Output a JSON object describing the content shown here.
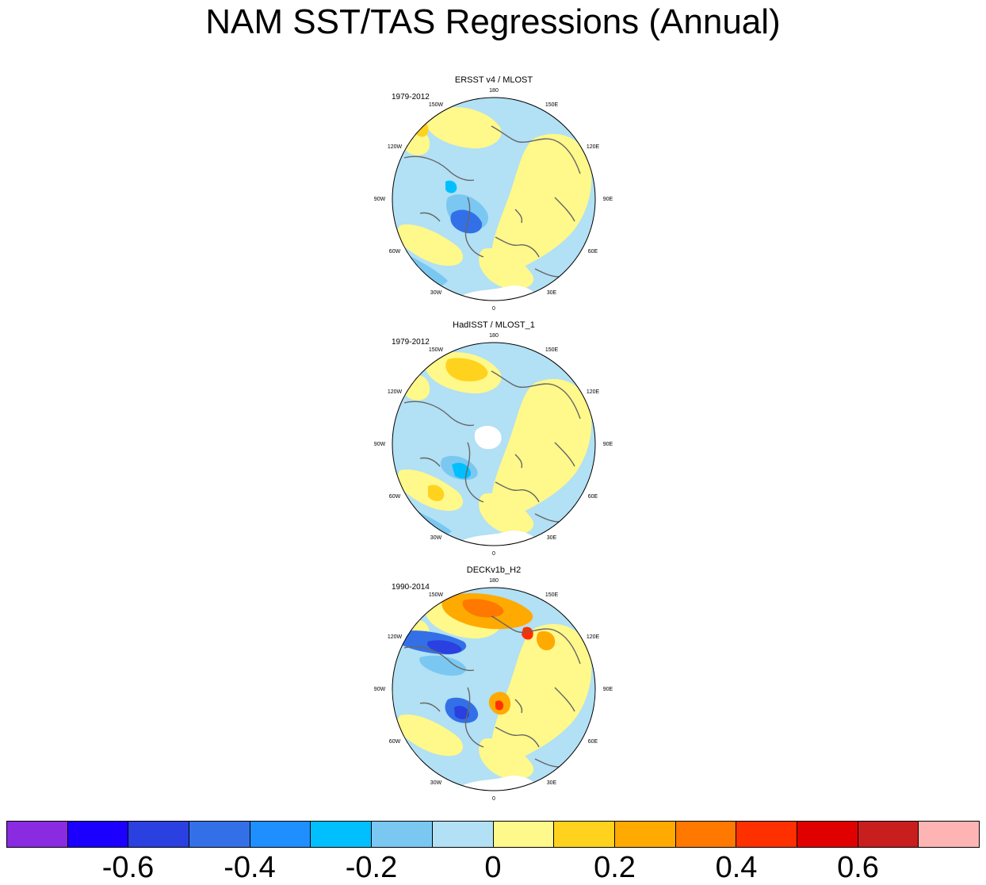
{
  "title": "NAM SST/TAS Regressions (Annual)",
  "panels": [
    {
      "title": "ERSST v4 / MLOST",
      "years": "1979-2012",
      "variant": "ersst"
    },
    {
      "title": "HadISST / MLOST_1",
      "years": "1979-2012",
      "variant": "hadisst"
    },
    {
      "title": "DECKv1b_H2",
      "years": "1990-2014",
      "variant": "deck"
    }
  ],
  "longitude_labels": [
    "180",
    "150E",
    "120E",
    "90E",
    "60E",
    "30E",
    "0",
    "30W",
    "60W",
    "90W",
    "120W",
    "150W"
  ],
  "colorbar": {
    "colors": [
      "#8a2be2",
      "#1c00ff",
      "#2a40e0",
      "#3370e8",
      "#1f8fff",
      "#00bfff",
      "#7ac8f2",
      "#b2e0f4",
      "#fff88a",
      "#ffd21e",
      "#ffaa00",
      "#ff7800",
      "#ff3000",
      "#e00000",
      "#c81e1e",
      "#ffb4b4"
    ],
    "labels": [
      "-0.6",
      "-0.4",
      "-0.2",
      "0",
      "0.2",
      "0.4",
      "0.6"
    ]
  }
}
